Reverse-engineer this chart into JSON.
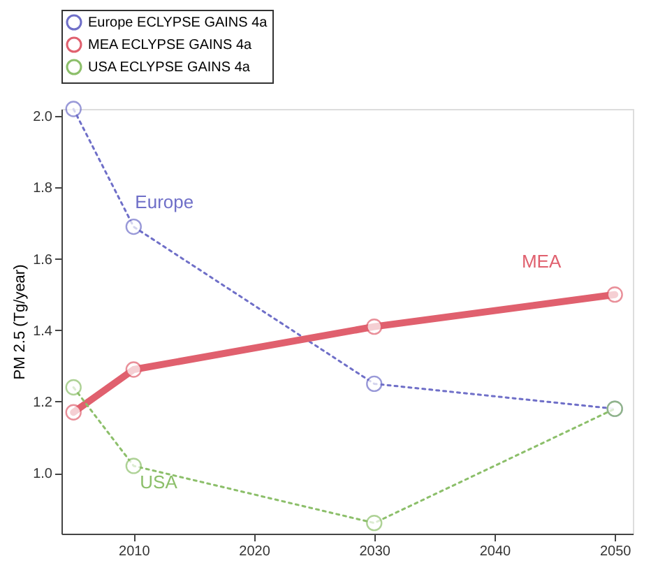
{
  "chart_data": {
    "type": "line",
    "ylabel": "PM 2.5 (Tg/year)",
    "x": [
      2005,
      2010,
      2030,
      2050
    ],
    "xlim": [
      2004,
      2051.5
    ],
    "xticks": [
      2010,
      2020,
      2030,
      2040,
      2050
    ],
    "ylim": [
      0.83,
      2.02
    ],
    "yticks": [
      {
        "value": 1.0,
        "label": "1.0"
      },
      {
        "value": 1.2,
        "label": "1.2"
      },
      {
        "value": 1.4,
        "label": "1.4"
      },
      {
        "value": 1.6,
        "label": "1.6"
      },
      {
        "value": 1.8,
        "label": "1.8"
      },
      {
        "value": 2.0,
        "label": "2.0"
      }
    ],
    "series": [
      {
        "name": "Europe ECLYPSE GAINS 4a",
        "color": "#6f6fc8",
        "values": [
          2.02,
          1.69,
          1.25,
          1.18
        ],
        "line_style": "dotted"
      },
      {
        "name": "MEA ECLYPSE GAINS 4a",
        "color": "#e0606e",
        "values": [
          1.17,
          1.29,
          1.41,
          1.5
        ],
        "line_style": "solid"
      },
      {
        "name": "USA ECLYPSE GAINS 4a",
        "color": "#8cbf6a",
        "values": [
          1.24,
          1.02,
          0.86,
          1.18
        ],
        "line_style": "dotted"
      }
    ],
    "annotations": [
      "Europe",
      "MEA",
      "USA"
    ],
    "marker": "circle",
    "legend": "top",
    "grid": false
  }
}
